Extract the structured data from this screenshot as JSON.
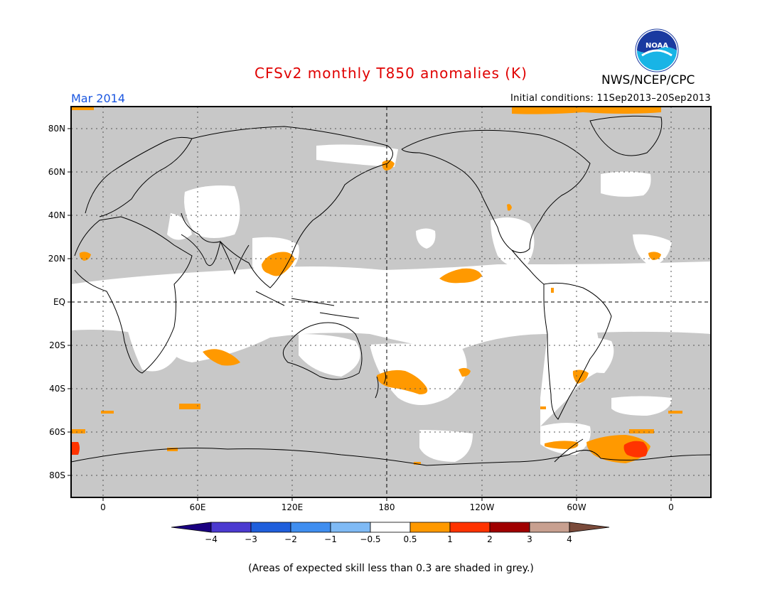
{
  "header": {
    "title": "CFSv2 monthly T850 anomalies (K)",
    "agency": "NWS/NCEP/CPC",
    "logo_text": "NOAA",
    "target_month": "Mar 2014",
    "initial_conditions": "Initial conditions: 11Sep2013–20Sep2013"
  },
  "map": {
    "lat_labels": [
      "80N",
      "60N",
      "40N",
      "20N",
      "EQ",
      "20S",
      "40S",
      "60S",
      "80S"
    ],
    "lon_labels": [
      "0",
      "60E",
      "120E",
      "180",
      "120W",
      "60W",
      "0"
    ],
    "colors": {
      "grey_low_skill": "#c8c8c8",
      "near_normal": "#ffffff",
      "anom_0_5_to_1": "#ff9900",
      "anom_1_to_2": "#ff3300",
      "coast": "#000000"
    }
  },
  "colorbar": {
    "labels": [
      "−4",
      "−3",
      "−2",
      "−1",
      "−0.5",
      "0.5",
      "1",
      "2",
      "3",
      "4"
    ],
    "colors": [
      "#1a0080",
      "#4b3ad0",
      "#1f5fdc",
      "#3f8ef0",
      "#7fbaf5",
      "#ffffff",
      "#ff9900",
      "#ff3300",
      "#a00000",
      "#c8a090",
      "#7a4a3a"
    ]
  },
  "footnote": "(Areas of expected skill less than 0.3 are shaded in grey.)"
}
